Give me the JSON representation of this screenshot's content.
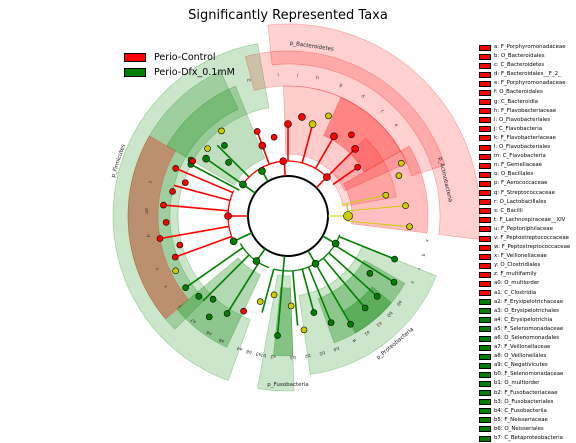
{
  "title": "Significantly Represented Taxa",
  "colors": {
    "Perio-Control": "#ff0000",
    "Perio-Dfx_0.1mM": "#008000",
    "nonsig": "#cccc00"
  },
  "groups": [
    "Perio-Control",
    "Perio-Dfx_0.1mM"
  ],
  "chart_data": {
    "type": "cladogram",
    "title": "Significantly Represented Taxa",
    "legend_groups": [
      "Perio-Control",
      "Perio-Dfx_0.1mM"
    ],
    "clades": [
      {
        "name": "p_Bacteroidetes",
        "group": "Perio-Control"
      },
      {
        "name": "p_Actinobacteria",
        "group": "Perio-Control"
      },
      {
        "name": "p_Firmicutes",
        "group": "Perio-Dfx_0.1mM"
      },
      {
        "name": "p_Fusobacteria",
        "group": "Perio-Dfx_0.1mM"
      },
      {
        "name": "p_Proteobacteria",
        "group": "Perio-Dfx_0.1mM"
      }
    ],
    "ring_labels": [
      "m",
      "l",
      "j",
      "h",
      "g",
      "d",
      "c",
      "e",
      "p",
      "a0",
      "t",
      "u",
      "v",
      "z",
      "b3",
      "b2",
      "b5",
      "b4",
      "b8",
      "b7",
      "a6",
      "a8",
      "a7",
      "a4",
      "a3",
      "a2",
      "a1",
      "b1",
      "b0",
      "a9",
      "s",
      "r",
      "q",
      "x",
      "w"
    ],
    "taxa": [
      {
        "label": "a: F_Porphyromonadaceae",
        "group": "Perio-Control"
      },
      {
        "label": "b: O_Bacteroidales",
        "group": "Perio-Control"
      },
      {
        "label": "c: C_Bacteroidetes",
        "group": "Perio-Control"
      },
      {
        "label": "d: F_Bacteroidales__F_2_",
        "group": "Perio-Control"
      },
      {
        "label": "e: F_Porphyromonadaceae",
        "group": "Perio-Control"
      },
      {
        "label": "f: O_Bacteroidales",
        "group": "Perio-Control"
      },
      {
        "label": "g: C_Bacteroidia",
        "group": "Perio-Control"
      },
      {
        "label": "h: F_Flavobacteriaceae",
        "group": "Perio-Control"
      },
      {
        "label": "i: O_Flavobacteriales",
        "group": "Perio-Control"
      },
      {
        "label": "j: C_Flavobacteria",
        "group": "Perio-Control"
      },
      {
        "label": "k: F_Flavobacteriaceae",
        "group": "Perio-Control"
      },
      {
        "label": "l: O_Flavobacteriales",
        "group": "Perio-Control"
      },
      {
        "label": "m: C_Flavobacteria",
        "group": "Perio-Control"
      },
      {
        "label": "n: F_Gemellaceae",
        "group": "Perio-Control"
      },
      {
        "label": "o: O_Bacillales",
        "group": "Perio-Control"
      },
      {
        "label": "p: F_Aerococcaceae",
        "group": "Perio-Control"
      },
      {
        "label": "q: F_Streptococcaceae",
        "group": "Perio-Control"
      },
      {
        "label": "r: O_Lactobacillales",
        "group": "Perio-Control"
      },
      {
        "label": "s: C_Bacilli",
        "group": "Perio-Control"
      },
      {
        "label": "t: F_Lachnospiraceae__XIV",
        "group": "Perio-Control"
      },
      {
        "label": "u: F_Peptoniphilaceae",
        "group": "Perio-Control"
      },
      {
        "label": "v: F_Peptostreptococcaceae",
        "group": "Perio-Control"
      },
      {
        "label": "w: F_Peptostreptococcaceae",
        "group": "Perio-Control"
      },
      {
        "label": "x: F_Veillonellaceae",
        "group": "Perio-Control"
      },
      {
        "label": "y: O_Clostridiales",
        "group": "Perio-Control"
      },
      {
        "label": "z: F_multifamily",
        "group": "Perio-Control"
      },
      {
        "label": "a0: O_multiorder",
        "group": "Perio-Control"
      },
      {
        "label": "a1: C_Clostridia",
        "group": "Perio-Control"
      },
      {
        "label": "a2: F_Erysipelotrichaceae",
        "group": "Perio-Dfx_0.1mM"
      },
      {
        "label": "a3: O_Erysipelotrichales",
        "group": "Perio-Dfx_0.1mM"
      },
      {
        "label": "a4: C_Erysipelotrichia",
        "group": "Perio-Dfx_0.1mM"
      },
      {
        "label": "a5: F_Selenomonadaceae",
        "group": "Perio-Dfx_0.1mM"
      },
      {
        "label": "a6: O_Selenomonadales",
        "group": "Perio-Dfx_0.1mM"
      },
      {
        "label": "a7: F_Veillonellaceae",
        "group": "Perio-Dfx_0.1mM"
      },
      {
        "label": "a8: O_Veillonellales",
        "group": "Perio-Dfx_0.1mM"
      },
      {
        "label": "a9: C_Negativicutes",
        "group": "Perio-Dfx_0.1mM"
      },
      {
        "label": "b0: F_Selenomonadaceae",
        "group": "Perio-Dfx_0.1mM"
      },
      {
        "label": "b1: O_multiorder",
        "group": "Perio-Dfx_0.1mM"
      },
      {
        "label": "b2: F_Fusobacteriaceae",
        "group": "Perio-Dfx_0.1mM"
      },
      {
        "label": "b3: O_Fusobacteriales",
        "group": "Perio-Dfx_0.1mM"
      },
      {
        "label": "b4: C_Fusobacteriia",
        "group": "Perio-Dfx_0.1mM"
      },
      {
        "label": "b5: F_Neisseriaceae",
        "group": "Perio-Dfx_0.1mM"
      },
      {
        "label": "b6: O_Neisseriales",
        "group": "Perio-Dfx_0.1mM"
      },
      {
        "label": "b7: C_Betaproteobacteria",
        "group": "Perio-Dfx_0.1mM"
      }
    ]
  }
}
